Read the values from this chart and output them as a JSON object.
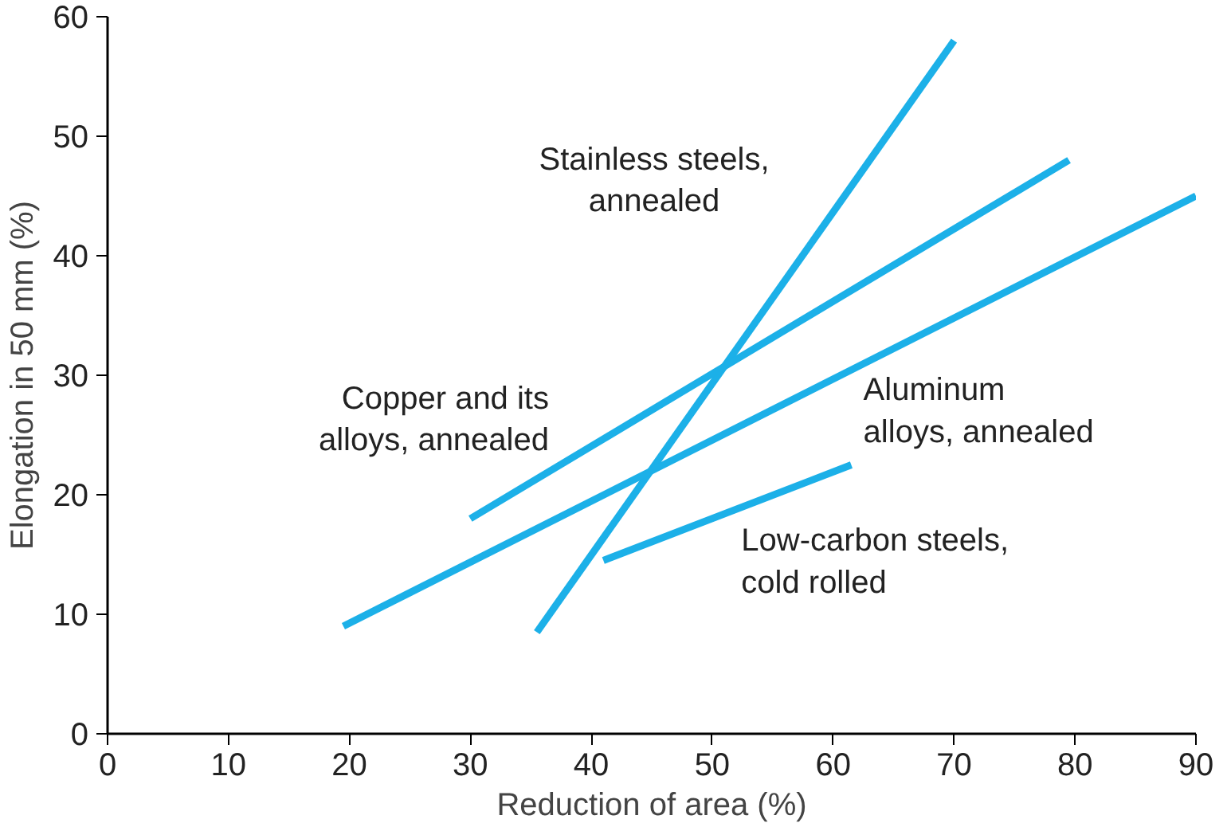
{
  "chart_data": {
    "type": "line",
    "xlabel": "Reduction of area (%)",
    "ylabel": "Elongation in 50 mm (%)",
    "xlim": [
      0,
      90
    ],
    "ylim": [
      0,
      60
    ],
    "xticks": [
      0,
      10,
      20,
      30,
      40,
      50,
      60,
      70,
      80,
      90
    ],
    "yticks": [
      0,
      10,
      20,
      30,
      40,
      50,
      60
    ],
    "grid": false,
    "legend": false,
    "series": [
      {
        "name": "Stainless steels,\nannealed",
        "color": "#1cb0e8",
        "x": [
          35.5,
          70
        ],
        "values": [
          8.5,
          58
        ]
      },
      {
        "name": "Copper and its\nalloys, annealed",
        "color": "#1cb0e8",
        "x": [
          30,
          79.5
        ],
        "values": [
          18,
          48
        ]
      },
      {
        "name": "Aluminum\nalloys, annealed",
        "color": "#1cb0e8",
        "x": [
          19.5,
          90
        ],
        "values": [
          9,
          45
        ]
      },
      {
        "name": "Low-carbon steels,\ncold rolled",
        "color": "#1cb0e8",
        "x": [
          41,
          61.5
        ],
        "values": [
          14.5,
          22.5
        ]
      }
    ]
  }
}
